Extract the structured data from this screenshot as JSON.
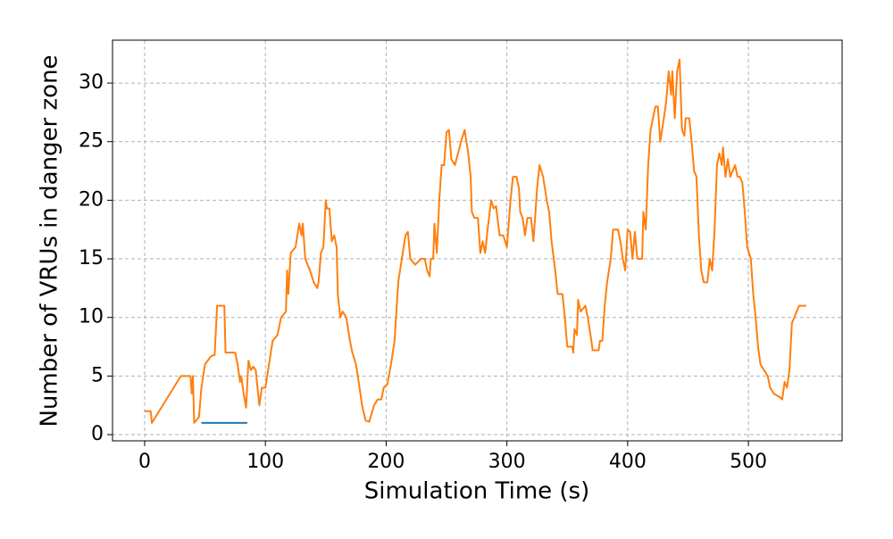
{
  "chart_data": {
    "type": "line",
    "x_label": "Simulation Time (s)",
    "y_label": "Number of VRUs in danger zone",
    "xlim": [
      -26.6,
      577.6
    ],
    "ylim": [
      -0.53,
      33.66
    ],
    "xticks": [
      0,
      100,
      200,
      300,
      400,
      500
    ],
    "yticks": [
      0,
      5,
      10,
      15,
      20,
      25,
      30
    ],
    "grid": true,
    "series": [
      {
        "color": "#ff7f0e",
        "x": [
          0,
          5,
          6,
          30,
          38,
          39,
          40,
          41,
          45,
          47,
          50,
          55,
          58,
          60,
          66,
          67,
          75,
          77,
          79,
          80,
          82,
          84,
          86,
          88,
          90,
          92,
          95,
          97,
          100,
          103,
          106,
          110,
          113,
          117,
          118,
          119,
          121,
          125,
          128,
          130,
          131,
          133,
          137,
          140,
          143,
          144,
          146,
          148,
          150,
          151,
          153,
          155,
          157,
          159,
          160,
          162,
          164,
          167,
          170,
          172,
          175,
          178,
          180,
          183,
          186,
          190,
          193,
          196,
          198,
          201,
          204,
          207,
          210,
          213,
          216,
          218,
          220,
          224,
          229,
          232,
          234,
          236,
          237,
          239,
          240,
          242,
          244,
          246,
          248,
          250,
          252,
          254,
          257,
          262,
          265,
          268,
          270,
          271,
          273,
          276,
          278,
          280,
          282,
          284,
          287,
          289,
          291,
          294,
          297,
          300,
          303,
          305,
          308,
          310,
          311,
          313,
          315,
          317,
          320,
          322,
          325,
          327,
          330,
          333,
          335,
          337,
          340,
          342,
          346,
          348,
          350,
          354,
          355,
          356,
          358,
          359,
          361,
          365,
          367,
          370,
          371,
          376,
          377,
          379,
          381,
          383,
          386,
          388,
          392,
          394,
          396,
          398,
          400,
          402,
          404,
          406,
          408,
          412,
          413,
          415,
          417,
          419,
          421,
          423,
          425,
          427,
          430,
          432,
          434,
          436,
          437,
          439,
          441,
          443,
          445,
          447,
          448,
          451,
          453,
          455,
          457,
          459,
          461,
          463,
          466,
          468,
          470,
          472,
          474,
          476,
          478,
          479,
          481,
          483,
          485,
          487,
          489,
          491,
          493,
          495,
          497,
          499,
          502,
          504,
          506,
          508,
          510,
          513,
          516,
          518,
          521,
          526,
          528,
          530,
          532,
          534,
          536,
          538,
          540,
          542,
          548
        ],
        "values": [
          2,
          2,
          1,
          5,
          5,
          3.5,
          5,
          1,
          1.5,
          4,
          6,
          6.7,
          6.8,
          11,
          11,
          7,
          7,
          6,
          4.5,
          5,
          3.5,
          2.3,
          6.3,
          5.5,
          5.8,
          5.5,
          2.5,
          4,
          4,
          6,
          8,
          8.5,
          10,
          10.5,
          14,
          12,
          15.5,
          16,
          18,
          17,
          18,
          15,
          14,
          13,
          12.5,
          13,
          15.5,
          16,
          20,
          19.3,
          19.3,
          16.5,
          17,
          16,
          12,
          10,
          10.5,
          10,
          8,
          7,
          6,
          4,
          2.5,
          1.2,
          1.1,
          2.5,
          3,
          3,
          4,
          4.3,
          6,
          8,
          13,
          15,
          17,
          17.3,
          15,
          14.5,
          15,
          15,
          14,
          13.5,
          15,
          15,
          18,
          15.5,
          20,
          23,
          23,
          25.8,
          26,
          23.5,
          23,
          25,
          26,
          24,
          22,
          19,
          18.5,
          18.5,
          15.5,
          16.5,
          15.5,
          17.5,
          20,
          19.3,
          19.5,
          17,
          17,
          16,
          20,
          22,
          22,
          21,
          19,
          18.5,
          17,
          18.5,
          18.5,
          16.5,
          21,
          23,
          22,
          20,
          19,
          16.5,
          14,
          12,
          12,
          10,
          7.5,
          7.5,
          7,
          9,
          8.5,
          11.5,
          10.5,
          11,
          10,
          8,
          7.2,
          7.2,
          8,
          8,
          11,
          13,
          15,
          17.5,
          17.5,
          16.5,
          15,
          14,
          17.5,
          17.3,
          15,
          17.3,
          15,
          15,
          19,
          17.5,
          23,
          26,
          27,
          28,
          28,
          25,
          27,
          28.5,
          31,
          29,
          31,
          27,
          31,
          32,
          26,
          25.5,
          27,
          27,
          25,
          22.5,
          22,
          17,
          14,
          13,
          13,
          15,
          14,
          17.5,
          23,
          24,
          23,
          24.5,
          22,
          23.5,
          22,
          22.5,
          23,
          22,
          22,
          21.5,
          19,
          16,
          15,
          12,
          10,
          7.5,
          6,
          5.5,
          5,
          4,
          3.5,
          3.2,
          3,
          4.5,
          4,
          5.5,
          9.5,
          10,
          10.5,
          11,
          11
        ]
      },
      {
        "color": "#1f77b4",
        "x": [
          47,
          85
        ],
        "values": [
          1,
          1
        ]
      }
    ]
  }
}
